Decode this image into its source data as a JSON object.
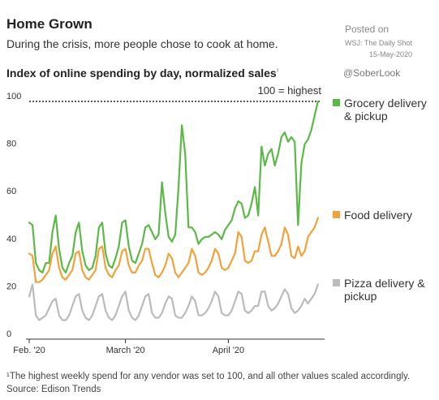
{
  "header": {
    "title": "Home Grown",
    "subtitle": "During the crisis, more people chose to cook at home.",
    "posted_on": "Posted on",
    "posted_source": "WSJ: The Daily Shot",
    "posted_date": "15-May-2020",
    "handle": "@SoberLook"
  },
  "footer": {
    "footnote": "¹The highest weekly spend for any vendor was set to 100, and all other values scaled accordingly.",
    "source": "Source: Edison Trends"
  },
  "chart_data": {
    "type": "line",
    "title": "Index of online spending by day, normalized sales",
    "title_marker": "¹",
    "xlabel": "",
    "ylabel": "",
    "ylim": [
      0,
      100
    ],
    "yticks": [
      0,
      20,
      40,
      60,
      80,
      100
    ],
    "x_range": [
      "2020-02-01",
      "2020-04-30"
    ],
    "xticks": [
      {
        "date": "2020-02-01",
        "label": "Feb. '20"
      },
      {
        "date": "2020-03-01",
        "label": "March '20"
      },
      {
        "date": "2020-04-01",
        "label": "April '20"
      }
    ],
    "annotation": {
      "y": 100,
      "label": "100 = highest"
    },
    "grid": false,
    "legend_position": "right",
    "series": [
      {
        "name": "Grocery delivery & pickup",
        "color": "#5cb847",
        "values": [
          [
            "2020-02-01",
            49
          ],
          [
            "2020-02-02",
            48
          ],
          [
            "2020-02-03",
            32
          ],
          [
            "2020-02-04",
            29
          ],
          [
            "2020-02-05",
            28
          ],
          [
            "2020-02-06",
            32
          ],
          [
            "2020-02-07",
            32
          ],
          [
            "2020-02-08",
            45
          ],
          [
            "2020-02-09",
            52
          ],
          [
            "2020-02-10",
            38
          ],
          [
            "2020-02-11",
            30
          ],
          [
            "2020-02-12",
            28
          ],
          [
            "2020-02-13",
            32
          ],
          [
            "2020-02-14",
            35
          ],
          [
            "2020-02-15",
            45
          ],
          [
            "2020-02-16",
            49
          ],
          [
            "2020-02-17",
            37
          ],
          [
            "2020-02-18",
            31
          ],
          [
            "2020-02-19",
            29
          ],
          [
            "2020-02-20",
            30
          ],
          [
            "2020-02-21",
            35
          ],
          [
            "2020-02-22",
            47
          ],
          [
            "2020-02-23",
            49
          ],
          [
            "2020-02-24",
            36
          ],
          [
            "2020-02-25",
            31
          ],
          [
            "2020-02-26",
            30
          ],
          [
            "2020-02-27",
            34
          ],
          [
            "2020-02-28",
            39
          ],
          [
            "2020-02-29",
            49
          ],
          [
            "2020-03-01",
            50
          ],
          [
            "2020-03-02",
            39
          ],
          [
            "2020-03-03",
            33
          ],
          [
            "2020-03-04",
            32
          ],
          [
            "2020-03-05",
            36
          ],
          [
            "2020-03-06",
            40
          ],
          [
            "2020-03-07",
            47
          ],
          [
            "2020-03-08",
            48
          ],
          [
            "2020-03-09",
            45
          ],
          [
            "2020-03-10",
            42
          ],
          [
            "2020-03-11",
            44
          ],
          [
            "2020-03-12",
            66
          ],
          [
            "2020-03-13",
            53
          ],
          [
            "2020-03-14",
            43
          ],
          [
            "2020-03-15",
            41
          ],
          [
            "2020-03-16",
            44
          ],
          [
            "2020-03-17",
            64
          ],
          [
            "2020-03-18",
            90
          ],
          [
            "2020-03-19",
            78
          ],
          [
            "2020-03-20",
            47
          ],
          [
            "2020-03-21",
            47
          ],
          [
            "2020-03-22",
            45
          ],
          [
            "2020-03-23",
            40
          ],
          [
            "2020-03-24",
            42
          ],
          [
            "2020-03-25",
            43
          ],
          [
            "2020-03-26",
            43
          ],
          [
            "2020-03-27",
            44
          ],
          [
            "2020-03-28",
            45
          ],
          [
            "2020-03-29",
            44
          ],
          [
            "2020-03-30",
            42
          ],
          [
            "2020-03-31",
            46
          ],
          [
            "2020-04-01",
            48
          ],
          [
            "2020-04-02",
            50
          ],
          [
            "2020-04-03",
            55
          ],
          [
            "2020-04-04",
            58
          ],
          [
            "2020-04-05",
            57
          ],
          [
            "2020-04-06",
            51
          ],
          [
            "2020-04-07",
            52
          ],
          [
            "2020-04-08",
            57
          ],
          [
            "2020-04-09",
            64
          ],
          [
            "2020-04-10",
            52
          ],
          [
            "2020-04-11",
            81
          ],
          [
            "2020-04-12",
            73
          ],
          [
            "2020-04-13",
            78
          ],
          [
            "2020-04-14",
            80
          ],
          [
            "2020-04-15",
            73
          ],
          [
            "2020-04-16",
            78
          ],
          [
            "2020-04-17",
            85
          ],
          [
            "2020-04-18",
            87
          ],
          [
            "2020-04-19",
            83
          ],
          [
            "2020-04-20",
            85
          ],
          [
            "2020-04-21",
            83
          ],
          [
            "2020-04-22",
            48
          ],
          [
            "2020-04-23",
            74
          ],
          [
            "2020-04-24",
            82
          ],
          [
            "2020-04-25",
            84
          ],
          [
            "2020-04-26",
            88
          ],
          [
            "2020-04-27",
            94
          ],
          [
            "2020-04-28",
            100
          ]
        ]
      },
      {
        "name": "Food delivery",
        "color": "#f2a23b",
        "values": [
          [
            "2020-02-01",
            36
          ],
          [
            "2020-02-02",
            35
          ],
          [
            "2020-02-03",
            24
          ],
          [
            "2020-02-04",
            24
          ],
          [
            "2020-02-05",
            25
          ],
          [
            "2020-02-06",
            27
          ],
          [
            "2020-02-07",
            29
          ],
          [
            "2020-02-08",
            36
          ],
          [
            "2020-02-09",
            39
          ],
          [
            "2020-02-10",
            30
          ],
          [
            "2020-02-11",
            26
          ],
          [
            "2020-02-12",
            25
          ],
          [
            "2020-02-13",
            27
          ],
          [
            "2020-02-14",
            29
          ],
          [
            "2020-02-15",
            36
          ],
          [
            "2020-02-16",
            37
          ],
          [
            "2020-02-17",
            29
          ],
          [
            "2020-02-18",
            26
          ],
          [
            "2020-02-19",
            25
          ],
          [
            "2020-02-20",
            27
          ],
          [
            "2020-02-21",
            29
          ],
          [
            "2020-02-22",
            38
          ],
          [
            "2020-02-23",
            39
          ],
          [
            "2020-02-24",
            30
          ],
          [
            "2020-02-25",
            27
          ],
          [
            "2020-02-26",
            26
          ],
          [
            "2020-02-27",
            29
          ],
          [
            "2020-02-28",
            31
          ],
          [
            "2020-02-29",
            37
          ],
          [
            "2020-03-01",
            38
          ],
          [
            "2020-03-02",
            31
          ],
          [
            "2020-03-03",
            28
          ],
          [
            "2020-03-04",
            28
          ],
          [
            "2020-03-05",
            31
          ],
          [
            "2020-03-06",
            33
          ],
          [
            "2020-03-07",
            38
          ],
          [
            "2020-03-08",
            38
          ],
          [
            "2020-03-09",
            32
          ],
          [
            "2020-03-10",
            27
          ],
          [
            "2020-03-11",
            26
          ],
          [
            "2020-03-12",
            28
          ],
          [
            "2020-03-13",
            31
          ],
          [
            "2020-03-14",
            36
          ],
          [
            "2020-03-15",
            34
          ],
          [
            "2020-03-16",
            28
          ],
          [
            "2020-03-17",
            26
          ],
          [
            "2020-03-18",
            28
          ],
          [
            "2020-03-19",
            30
          ],
          [
            "2020-03-20",
            32
          ],
          [
            "2020-03-21",
            38
          ],
          [
            "2020-03-22",
            35
          ],
          [
            "2020-03-23",
            28
          ],
          [
            "2020-03-24",
            27
          ],
          [
            "2020-03-25",
            28
          ],
          [
            "2020-03-26",
            30
          ],
          [
            "2020-03-27",
            33
          ],
          [
            "2020-03-28",
            38
          ],
          [
            "2020-03-29",
            36
          ],
          [
            "2020-03-30",
            30
          ],
          [
            "2020-03-31",
            29
          ],
          [
            "2020-04-01",
            30
          ],
          [
            "2020-04-02",
            33
          ],
          [
            "2020-04-03",
            36
          ],
          [
            "2020-04-04",
            45
          ],
          [
            "2020-04-05",
            43
          ],
          [
            "2020-04-06",
            33
          ],
          [
            "2020-04-07",
            32
          ],
          [
            "2020-04-08",
            33
          ],
          [
            "2020-04-09",
            37
          ],
          [
            "2020-04-10",
            37
          ],
          [
            "2020-04-11",
            44
          ],
          [
            "2020-04-12",
            47
          ],
          [
            "2020-04-13",
            41
          ],
          [
            "2020-04-14",
            35
          ],
          [
            "2020-04-15",
            35
          ],
          [
            "2020-04-16",
            37
          ],
          [
            "2020-04-17",
            40
          ],
          [
            "2020-04-18",
            47
          ],
          [
            "2020-04-19",
            44
          ],
          [
            "2020-04-20",
            35
          ],
          [
            "2020-04-21",
            34
          ],
          [
            "2020-04-22",
            39
          ],
          [
            "2020-04-23",
            35
          ],
          [
            "2020-04-24",
            37
          ],
          [
            "2020-04-25",
            43
          ],
          [
            "2020-04-26",
            45
          ],
          [
            "2020-04-27",
            47
          ],
          [
            "2020-04-28",
            51
          ]
        ]
      },
      {
        "name": "Pizza delivery & pickup",
        "color": "#bbbbbb",
        "values": [
          [
            "2020-02-01",
            18
          ],
          [
            "2020-02-02",
            23
          ],
          [
            "2020-02-03",
            10
          ],
          [
            "2020-02-04",
            8
          ],
          [
            "2020-02-05",
            9
          ],
          [
            "2020-02-06",
            10
          ],
          [
            "2020-02-07",
            13
          ],
          [
            "2020-02-08",
            16
          ],
          [
            "2020-02-09",
            17
          ],
          [
            "2020-02-10",
            10
          ],
          [
            "2020-02-11",
            8
          ],
          [
            "2020-02-12",
            8
          ],
          [
            "2020-02-13",
            10
          ],
          [
            "2020-02-14",
            14
          ],
          [
            "2020-02-15",
            18
          ],
          [
            "2020-02-16",
            19
          ],
          [
            "2020-02-17",
            12
          ],
          [
            "2020-02-18",
            9
          ],
          [
            "2020-02-19",
            8
          ],
          [
            "2020-02-20",
            10
          ],
          [
            "2020-02-21",
            14
          ],
          [
            "2020-02-22",
            18
          ],
          [
            "2020-02-23",
            19
          ],
          [
            "2020-02-24",
            12
          ],
          [
            "2020-02-25",
            9
          ],
          [
            "2020-02-26",
            8
          ],
          [
            "2020-02-27",
            10
          ],
          [
            "2020-02-28",
            14
          ],
          [
            "2020-02-29",
            18
          ],
          [
            "2020-03-01",
            20
          ],
          [
            "2020-03-02",
            12
          ],
          [
            "2020-03-03",
            9
          ],
          [
            "2020-03-04",
            8
          ],
          [
            "2020-03-05",
            10
          ],
          [
            "2020-03-06",
            14
          ],
          [
            "2020-03-07",
            18
          ],
          [
            "2020-03-08",
            19
          ],
          [
            "2020-03-09",
            11
          ],
          [
            "2020-03-10",
            9
          ],
          [
            "2020-03-11",
            9
          ],
          [
            "2020-03-12",
            11
          ],
          [
            "2020-03-13",
            15
          ],
          [
            "2020-03-14",
            18
          ],
          [
            "2020-03-15",
            17
          ],
          [
            "2020-03-16",
            10
          ],
          [
            "2020-03-17",
            9
          ],
          [
            "2020-03-18",
            9
          ],
          [
            "2020-03-19",
            11
          ],
          [
            "2020-03-20",
            14
          ],
          [
            "2020-03-21",
            18
          ],
          [
            "2020-03-22",
            16
          ],
          [
            "2020-03-23",
            10
          ],
          [
            "2020-03-24",
            10
          ],
          [
            "2020-03-25",
            11
          ],
          [
            "2020-03-26",
            13
          ],
          [
            "2020-03-27",
            16
          ],
          [
            "2020-03-28",
            20
          ],
          [
            "2020-03-29",
            18
          ],
          [
            "2020-03-30",
            11
          ],
          [
            "2020-03-31",
            10
          ],
          [
            "2020-04-01",
            10
          ],
          [
            "2020-04-02",
            12
          ],
          [
            "2020-04-03",
            16
          ],
          [
            "2020-04-04",
            20
          ],
          [
            "2020-04-05",
            19
          ],
          [
            "2020-04-06",
            12
          ],
          [
            "2020-04-07",
            11
          ],
          [
            "2020-04-08",
            12
          ],
          [
            "2020-04-09",
            14
          ],
          [
            "2020-04-10",
            14
          ],
          [
            "2020-04-11",
            20
          ],
          [
            "2020-04-12",
            20
          ],
          [
            "2020-04-13",
            14
          ],
          [
            "2020-04-14",
            12
          ],
          [
            "2020-04-15",
            13
          ],
          [
            "2020-04-16",
            15
          ],
          [
            "2020-04-17",
            18
          ],
          [
            "2020-04-18",
            21
          ],
          [
            "2020-04-19",
            19
          ],
          [
            "2020-04-20",
            13
          ],
          [
            "2020-04-21",
            11
          ],
          [
            "2020-04-22",
            12
          ],
          [
            "2020-04-23",
            14
          ],
          [
            "2020-04-24",
            17
          ],
          [
            "2020-04-25",
            15
          ],
          [
            "2020-04-26",
            17
          ],
          [
            "2020-04-27",
            19
          ],
          [
            "2020-04-28",
            23
          ]
        ]
      }
    ]
  }
}
